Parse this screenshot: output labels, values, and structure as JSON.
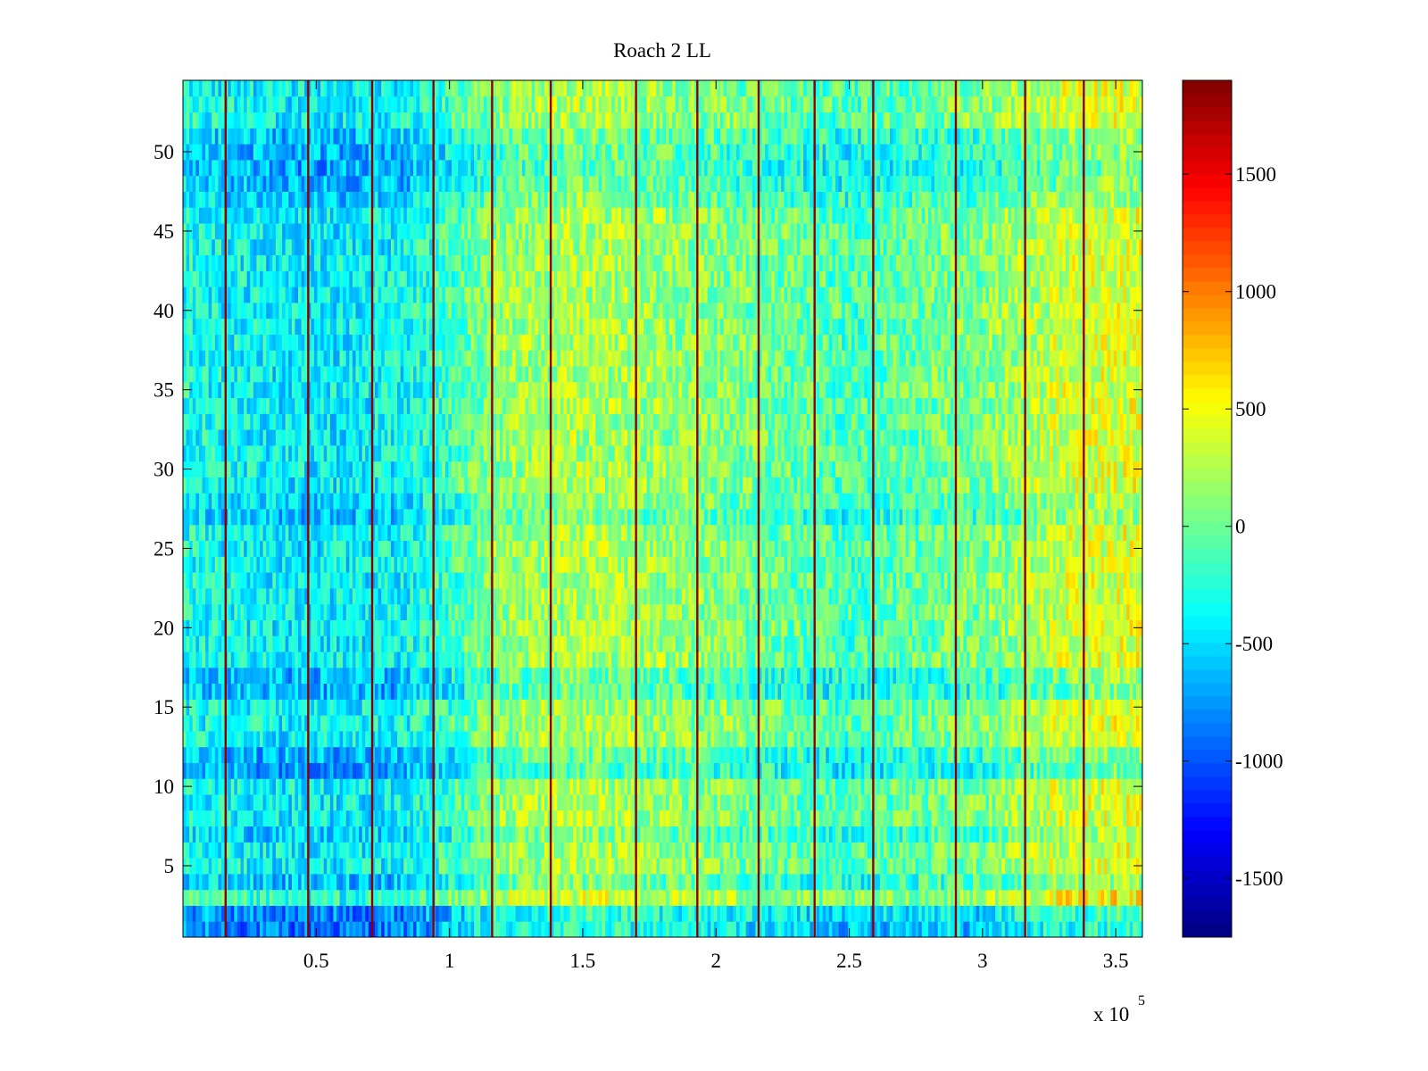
{
  "chart_data": {
    "type": "heatmap",
    "title": "Roach 2 LL",
    "xlabel": "",
    "ylabel": "",
    "xlim": [
      0,
      360000
    ],
    "ylim": [
      0.5,
      54.5
    ],
    "x_ticks": [
      50000,
      100000,
      150000,
      200000,
      250000,
      300000,
      350000
    ],
    "x_tick_labels": [
      "0.5",
      "1",
      "1.5",
      "2",
      "2.5",
      "3",
      "3.5"
    ],
    "x_exponent_label": "x 10",
    "x_exponent_power": "5",
    "y_ticks": [
      5,
      10,
      15,
      20,
      25,
      30,
      35,
      40,
      45,
      50
    ],
    "y_tick_labels": [
      "5",
      "10",
      "15",
      "20",
      "25",
      "30",
      "35",
      "40",
      "45",
      "50"
    ],
    "rows": 54,
    "colormap": "jet",
    "colorbar": {
      "range": [
        -1750,
        1900
      ],
      "ticks": [
        -1500,
        -1000,
        -500,
        0,
        500,
        1000,
        1500
      ],
      "tick_labels": [
        "-1500",
        "-1000",
        "-500",
        "0",
        "500",
        "1000",
        "1500"
      ]
    },
    "spike_lines_x": [
      16000,
      47000,
      71000,
      94000,
      116000,
      138000,
      170000,
      193000,
      216000,
      237000,
      259000,
      290000,
      316000,
      338000
    ],
    "spike_value": 1850,
    "value_trend": {
      "x": [
        0,
        40000,
        80000,
        100000,
        120000,
        150000,
        200000,
        250000,
        300000,
        330000,
        360000
      ],
      "mean": [
        -300,
        -420,
        -380,
        -150,
        150,
        250,
        100,
        -120,
        80,
        350,
        420
      ]
    },
    "row_offsets": {
      "rows": [
        1,
        2,
        3,
        4,
        7,
        11,
        12,
        16,
        17,
        27,
        28,
        47,
        48,
        49,
        50,
        51
      ],
      "offsets": [
        -400,
        -350,
        100,
        -150,
        -120,
        -250,
        -200,
        -220,
        -180,
        -150,
        -80,
        -120,
        -200,
        -250,
        -200,
        -150
      ]
    },
    "grid": false,
    "legend": "colorbar-right"
  }
}
